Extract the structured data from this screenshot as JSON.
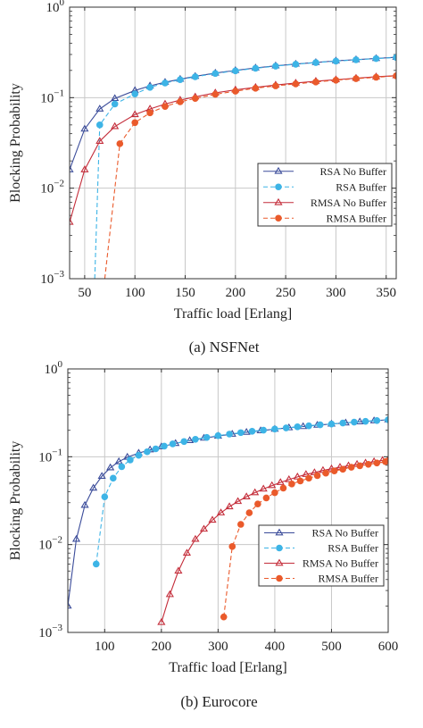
{
  "chart_data": [
    {
      "type": "line",
      "caption": "(a) NSFNet",
      "xlabel": "Traffic load [Erlang]",
      "ylabel": "Blocking Probability",
      "xlim": [
        35,
        360
      ],
      "ylim": [
        0.001,
        1
      ],
      "yscale": "log",
      "grid": true,
      "legend_position": "right",
      "x_ticks": [
        "50",
        "100",
        "150",
        "200",
        "250",
        "300",
        "350"
      ],
      "x_tick_values": [
        50,
        100,
        150,
        200,
        250,
        300,
        350
      ],
      "y_ticks": [
        {
          "base": "10",
          "exp": "0",
          "value": 1
        },
        {
          "base": "10",
          "exp": "−1",
          "value": 0.1
        },
        {
          "base": "10",
          "exp": "−2",
          "value": 0.01
        },
        {
          "base": "10",
          "exp": "−3",
          "value": 0.001
        }
      ],
      "series": [
        {
          "name": "RSA No Buffer",
          "color": "#3b4c9a",
          "marker": "triangle",
          "dashed": false,
          "x": [
            35,
            50,
            65,
            80,
            100,
            115,
            130,
            145,
            160,
            180,
            200,
            220,
            240,
            260,
            280,
            300,
            320,
            340,
            360
          ],
          "y": [
            0.016,
            0.045,
            0.075,
            0.098,
            0.12,
            0.135,
            0.148,
            0.16,
            0.172,
            0.187,
            0.2,
            0.213,
            0.225,
            0.235,
            0.245,
            0.255,
            0.263,
            0.271,
            0.28
          ]
        },
        {
          "name": "RSA Buffer",
          "color": "#3db4e6",
          "marker": "circle",
          "dashed": true,
          "x": [
            60,
            65,
            80,
            100,
            115,
            130,
            145,
            160,
            180,
            200,
            220,
            240,
            260,
            280,
            300,
            320,
            340,
            360
          ],
          "y": [
            0.001,
            0.05,
            0.085,
            0.11,
            0.13,
            0.145,
            0.158,
            0.17,
            0.185,
            0.198,
            0.211,
            0.223,
            0.234,
            0.244,
            0.253,
            0.262,
            0.27,
            0.278
          ]
        },
        {
          "name": "RMSA No Buffer",
          "color": "#c42d3a",
          "marker": "triangle",
          "dashed": false,
          "x": [
            35,
            50,
            65,
            80,
            100,
            115,
            130,
            145,
            160,
            180,
            200,
            220,
            240,
            260,
            280,
            300,
            320,
            340,
            360
          ],
          "y": [
            0.0042,
            0.016,
            0.033,
            0.048,
            0.065,
            0.075,
            0.085,
            0.094,
            0.102,
            0.113,
            0.122,
            0.13,
            0.138,
            0.145,
            0.152,
            0.158,
            0.164,
            0.17,
            0.175
          ]
        },
        {
          "name": "RMSA Buffer",
          "color": "#ea5a2b",
          "marker": "circle",
          "dashed": true,
          "x": [
            70,
            85,
            100,
            115,
            130,
            145,
            160,
            180,
            200,
            220,
            240,
            260,
            280,
            300,
            320,
            340,
            360
          ],
          "y": [
            0.001,
            0.031,
            0.053,
            0.068,
            0.08,
            0.09,
            0.098,
            0.109,
            0.118,
            0.127,
            0.135,
            0.142,
            0.149,
            0.156,
            0.162,
            0.168,
            0.174
          ]
        }
      ]
    },
    {
      "type": "line",
      "caption": "(b) Eurocore",
      "xlabel": "Traffic load [Erlang]",
      "ylabel": "Blocking Probability",
      "xlim": [
        35,
        600
      ],
      "ylim": [
        0.001,
        1
      ],
      "yscale": "log",
      "grid": true,
      "legend_position": "bottom-right",
      "x_ticks": [
        "100",
        "200",
        "300",
        "400",
        "500",
        "600"
      ],
      "x_tick_values": [
        100,
        200,
        300,
        400,
        500,
        600
      ],
      "y_ticks": [
        {
          "base": "10",
          "exp": "0",
          "value": 1
        },
        {
          "base": "10",
          "exp": "−1",
          "value": 0.1
        },
        {
          "base": "10",
          "exp": "−2",
          "value": 0.01
        },
        {
          "base": "10",
          "exp": "−3",
          "value": 0.001
        }
      ],
      "series": [
        {
          "name": "RSA No Buffer",
          "color": "#3b4c9a",
          "marker": "triangle",
          "dashed": false,
          "x": [
            35,
            50,
            65,
            80,
            95,
            110,
            125,
            140,
            160,
            180,
            200,
            225,
            250,
            275,
            300,
            325,
            350,
            375,
            400,
            425,
            450,
            475,
            500,
            525,
            550,
            575,
            600
          ],
          "y": [
            0.002,
            0.0115,
            0.028,
            0.044,
            0.06,
            0.075,
            0.088,
            0.099,
            0.11,
            0.12,
            0.13,
            0.142,
            0.153,
            0.163,
            0.172,
            0.181,
            0.19,
            0.198,
            0.206,
            0.214,
            0.221,
            0.229,
            0.236,
            0.243,
            0.25,
            0.257,
            0.264
          ]
        },
        {
          "name": "RSA Buffer",
          "color": "#3db4e6",
          "marker": "circle",
          "dashed": true,
          "x": [
            85,
            100,
            115,
            130,
            145,
            160,
            175,
            190,
            205,
            220,
            240,
            260,
            280,
            300,
            320,
            340,
            360,
            380,
            400,
            420,
            440,
            460,
            480,
            500,
            520,
            540,
            560,
            580,
            600
          ],
          "y": [
            0.006,
            0.035,
            0.057,
            0.077,
            0.092,
            0.104,
            0.114,
            0.123,
            0.132,
            0.14,
            0.149,
            0.158,
            0.166,
            0.174,
            0.181,
            0.188,
            0.195,
            0.201,
            0.207,
            0.213,
            0.219,
            0.225,
            0.231,
            0.236,
            0.242,
            0.248,
            0.253,
            0.258,
            0.264
          ]
        },
        {
          "name": "RMSA No Buffer",
          "color": "#c42d3a",
          "marker": "triangle",
          "dashed": false,
          "x": [
            200,
            215,
            230,
            245,
            260,
            275,
            290,
            305,
            320,
            335,
            350,
            365,
            380,
            395,
            410,
            425,
            440,
            455,
            470,
            485,
            500,
            515,
            530,
            545,
            560,
            575,
            590,
            600
          ],
          "y": [
            0.0013,
            0.0027,
            0.005,
            0.008,
            0.0115,
            0.015,
            0.019,
            0.023,
            0.027,
            0.031,
            0.035,
            0.039,
            0.043,
            0.047,
            0.051,
            0.055,
            0.059,
            0.063,
            0.066,
            0.07,
            0.073,
            0.076,
            0.079,
            0.082,
            0.085,
            0.088,
            0.091,
            0.092
          ]
        },
        {
          "name": "RMSA Buffer",
          "color": "#ea5a2b",
          "marker": "circle",
          "dashed": true,
          "x": [
            310,
            325,
            340,
            355,
            370,
            385,
            400,
            415,
            430,
            445,
            460,
            475,
            490,
            505,
            520,
            535,
            550,
            565,
            580,
            595,
            600
          ],
          "y": [
            0.0015,
            0.0095,
            0.017,
            0.023,
            0.029,
            0.034,
            0.039,
            0.044,
            0.049,
            0.053,
            0.057,
            0.061,
            0.065,
            0.069,
            0.072,
            0.076,
            0.079,
            0.082,
            0.085,
            0.088,
            0.09
          ]
        }
      ]
    }
  ]
}
